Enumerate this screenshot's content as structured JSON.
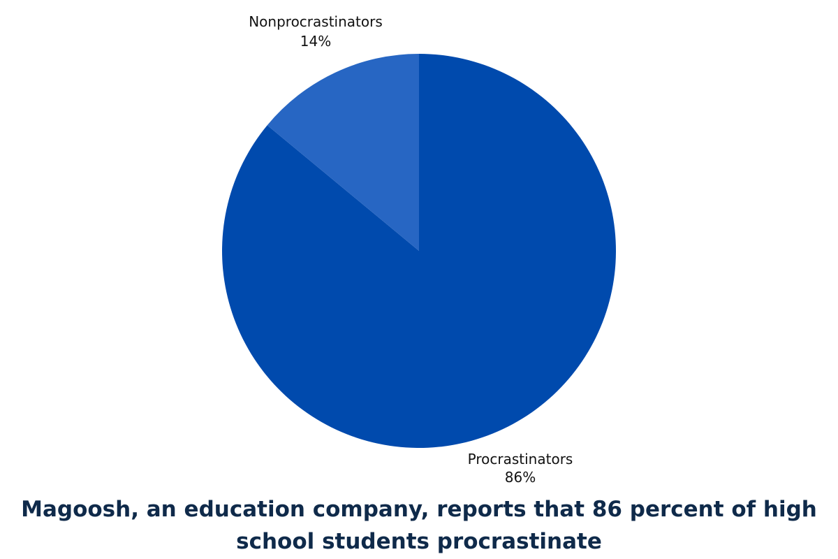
{
  "chart_data": {
    "type": "pie",
    "slices": [
      {
        "label": "Procrastinators",
        "value": 86,
        "value_label": "86%",
        "color": "#004aad"
      },
      {
        "label": "Nonprocrastinators",
        "value": 14,
        "value_label": "14%",
        "color": "#2766c3"
      }
    ],
    "title": "",
    "legend": "none"
  },
  "caption": {
    "line1": "Magoosh, an education company, reports that 86 percent of high",
    "line2": "school students procrastinate"
  },
  "colors": {
    "caption": "#0f2a4a",
    "background": "#ffffff"
  }
}
